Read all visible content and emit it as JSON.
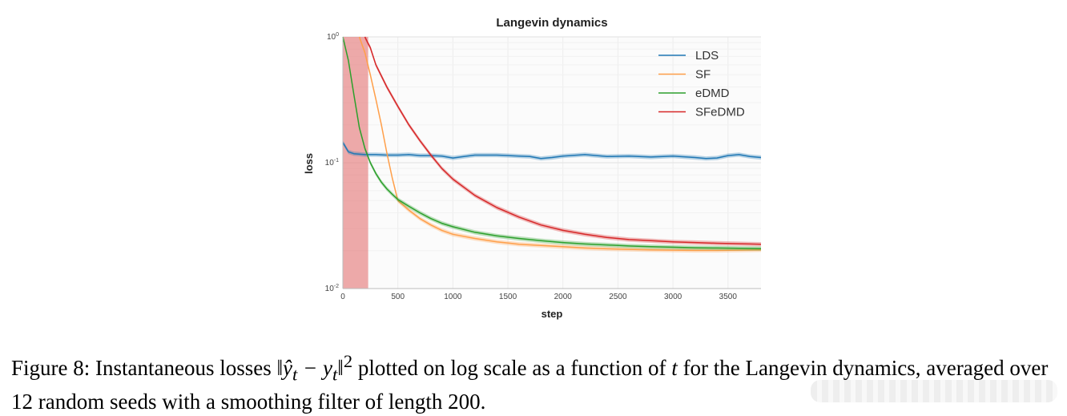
{
  "chart_data": {
    "type": "line",
    "title": "Langevin dynamics",
    "xlabel": "step",
    "ylabel": "loss",
    "yscale": "log",
    "xlim": [
      0,
      3800
    ],
    "ylim": [
      0.01,
      1
    ],
    "x_ticks": [
      0,
      500,
      1000,
      1500,
      2000,
      2500,
      3000,
      3500
    ],
    "y_ticks": [
      {
        "value": 0.01,
        "base": "10",
        "exp": "-2"
      },
      {
        "value": 0.1,
        "base": "10",
        "exp": "-1"
      },
      {
        "value": 1,
        "base": "10",
        "exp": "0"
      }
    ],
    "grid": true,
    "legend_position": "top-right",
    "shaded_region": {
      "x_start": 0,
      "x_end": 230,
      "color": "#e57373"
    },
    "series": [
      {
        "name": "LDS",
        "color": "#1f77b4",
        "x": [
          0,
          50,
          100,
          200,
          300,
          400,
          500,
          600,
          700,
          800,
          900,
          1000,
          1100,
          1200,
          1400,
          1600,
          1700,
          1800,
          1900,
          2000,
          2200,
          2400,
          2600,
          2800,
          3000,
          3200,
          3300,
          3400,
          3500,
          3600,
          3700,
          3800
        ],
        "y": [
          0.145,
          0.122,
          0.118,
          0.116,
          0.116,
          0.115,
          0.115,
          0.116,
          0.114,
          0.114,
          0.113,
          0.109,
          0.112,
          0.115,
          0.115,
          0.113,
          0.112,
          0.108,
          0.11,
          0.113,
          0.116,
          0.112,
          0.113,
          0.111,
          0.113,
          0.11,
          0.108,
          0.109,
          0.114,
          0.116,
          0.112,
          0.11
        ]
      },
      {
        "name": "SF",
        "color": "#ff9f4a",
        "x": [
          150,
          200,
          250,
          300,
          350,
          400,
          450,
          500,
          600,
          700,
          800,
          900,
          1000,
          1200,
          1400,
          1600,
          1800,
          2000,
          2200,
          2400,
          2600,
          2800,
          3000,
          3200,
          3400,
          3600,
          3800
        ],
        "y": [
          1.0,
          0.75,
          0.5,
          0.32,
          0.2,
          0.12,
          0.075,
          0.05,
          0.042,
          0.036,
          0.032,
          0.029,
          0.027,
          0.025,
          0.0235,
          0.0225,
          0.022,
          0.0215,
          0.021,
          0.0207,
          0.0205,
          0.0203,
          0.0202,
          0.0201,
          0.0201,
          0.0202,
          0.0203
        ]
      },
      {
        "name": "eDMD",
        "color": "#2ca02c",
        "x": [
          0,
          50,
          100,
          150,
          200,
          250,
          300,
          350,
          400,
          450,
          500,
          600,
          700,
          800,
          900,
          1000,
          1200,
          1400,
          1600,
          1800,
          2000,
          2200,
          2400,
          2600,
          2800,
          3000,
          3200,
          3400,
          3600,
          3800
        ],
        "y": [
          1.0,
          0.65,
          0.35,
          0.19,
          0.13,
          0.1,
          0.082,
          0.07,
          0.062,
          0.056,
          0.051,
          0.045,
          0.04,
          0.036,
          0.033,
          0.031,
          0.028,
          0.0262,
          0.025,
          0.024,
          0.0232,
          0.0226,
          0.0222,
          0.0218,
          0.0215,
          0.0213,
          0.0211,
          0.021,
          0.0209,
          0.0208
        ]
      },
      {
        "name": "SFeDMD",
        "color": "#d62728",
        "x": [
          200,
          250,
          300,
          400,
          500,
          600,
          700,
          800,
          900,
          1000,
          1200,
          1400,
          1600,
          1800,
          2000,
          2200,
          2400,
          2600,
          2800,
          3000,
          3200,
          3400,
          3600,
          3700,
          3800
        ],
        "y": [
          1.0,
          0.82,
          0.6,
          0.4,
          0.28,
          0.2,
          0.15,
          0.115,
          0.09,
          0.074,
          0.055,
          0.044,
          0.037,
          0.032,
          0.029,
          0.027,
          0.0255,
          0.0245,
          0.024,
          0.0235,
          0.0232,
          0.0229,
          0.0227,
          0.0226,
          0.0225
        ]
      }
    ]
  },
  "caption": {
    "prefix": "Figure 8: Instantaneous losses ",
    "math": "‖ŷ",
    "sub_t": "t",
    "minus": " − y",
    "sub_t2": "t",
    "norm_close": "‖",
    "sup": "2",
    "middle": " plotted on log scale as a function of ",
    "t_var": "t",
    "suffix": " for the Langevin dynamics, averaged over 12 random seeds with a smoothing filter of length 200."
  }
}
